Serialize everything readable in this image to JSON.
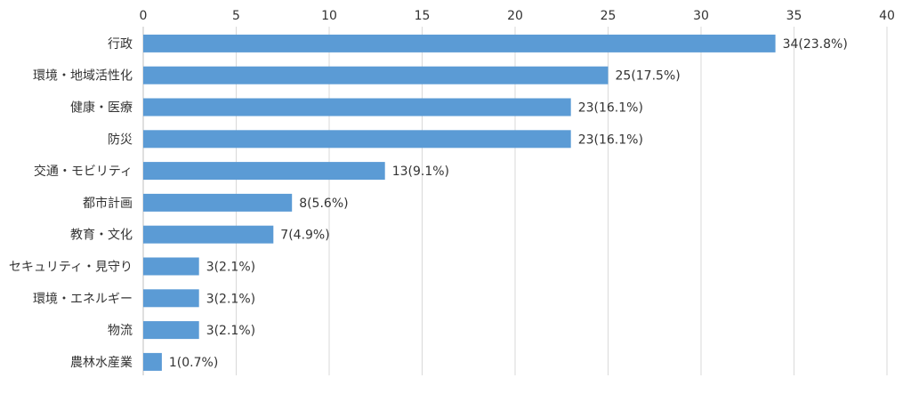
{
  "chart_data": {
    "type": "bar",
    "orientation": "horizontal",
    "title": "",
    "xlabel": "",
    "ylabel": "",
    "xlim": [
      0,
      40
    ],
    "ticks": [
      0,
      5,
      10,
      15,
      20,
      25,
      30,
      35,
      40
    ],
    "grid": true,
    "legend": "none",
    "bar_color": "#5b9bd5",
    "categories": [
      "行政",
      "環境・地域活性化",
      "健康・医療",
      "防災",
      "交通・モビリティ",
      "都市計画",
      "教育・文化",
      "セキュリティ・見守り",
      "環境・エネルギー",
      "物流",
      "農林水産業"
    ],
    "values": [
      34,
      25,
      23,
      23,
      13,
      8,
      7,
      3,
      3,
      3,
      1
    ],
    "labels": [
      "34(23.8%)",
      "25(17.5%)",
      "23(16.1%)",
      "23(16.1%)",
      "13(9.1%)",
      "8(5.6%)",
      "7(4.9%)",
      "3(2.1%)",
      "3(2.1%)",
      "3(2.1%)",
      "1(0.7%)"
    ]
  }
}
